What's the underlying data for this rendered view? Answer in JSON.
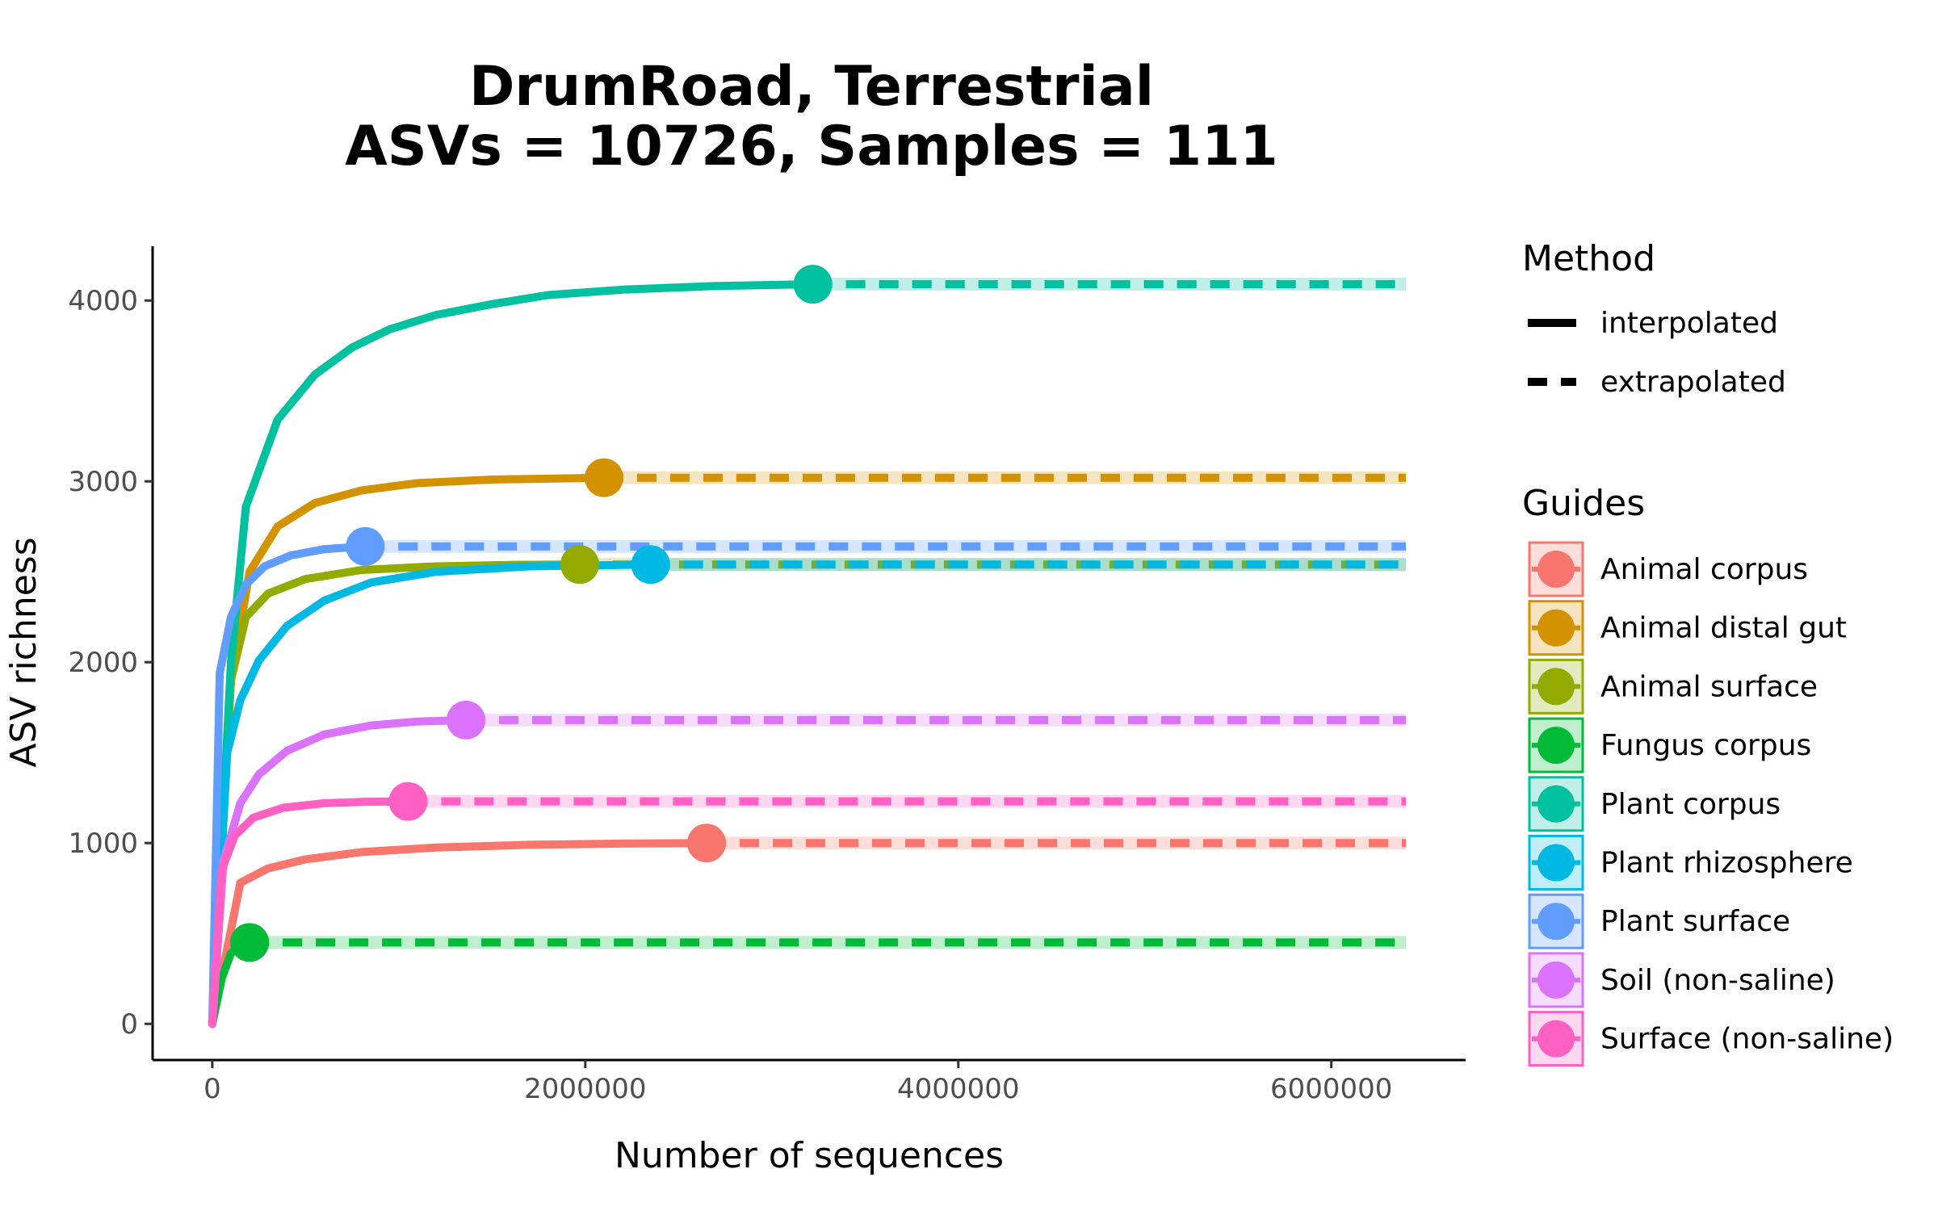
{
  "chart_data": {
    "type": "line",
    "title_line1": "DrumRoad, Terrestrial",
    "title_line2": "ASVs = 10726, Samples = 111",
    "xlabel": "Number of sequences",
    "ylabel": "ASV richness",
    "xlim": [
      -320000,
      6720000
    ],
    "ylim": [
      -200,
      4300
    ],
    "x_extrapolate_end": 6400000,
    "x_ticks": [
      0,
      2000000,
      4000000,
      6000000
    ],
    "x_tick_labels": [
      "0",
      "2000000",
      "4000000",
      "6000000"
    ],
    "y_ticks": [
      0,
      1000,
      2000,
      3000,
      4000
    ],
    "y_tick_labels": [
      "0",
      "1000",
      "2000",
      "3000",
      "4000"
    ],
    "grid": false,
    "legend_placement": "right",
    "method_legend": {
      "title": "Method",
      "items": [
        {
          "label": "interpolated",
          "style": "solid"
        },
        {
          "label": "extrapolated",
          "style": "dashed"
        }
      ]
    },
    "guides_legend_title": "Guides",
    "series": [
      {
        "name": "Animal corpus",
        "color": "#F8766D",
        "observed_x": 2650000,
        "observed_y": 1000,
        "points": [
          [
            0,
            0
          ],
          [
            150000,
            780
          ],
          [
            300000,
            860
          ],
          [
            500000,
            910
          ],
          [
            800000,
            950
          ],
          [
            1200000,
            975
          ],
          [
            1700000,
            990
          ],
          [
            2200000,
            997
          ],
          [
            2650000,
            1000
          ]
        ]
      },
      {
        "name": "Animal distal gut",
        "color": "#D39200",
        "observed_x": 2100000,
        "observed_y": 3020,
        "points": [
          [
            0,
            0
          ],
          [
            100000,
            1900
          ],
          [
            200000,
            2500
          ],
          [
            350000,
            2750
          ],
          [
            550000,
            2880
          ],
          [
            800000,
            2950
          ],
          [
            1100000,
            2990
          ],
          [
            1500000,
            3010
          ],
          [
            2100000,
            3020
          ]
        ]
      },
      {
        "name": "Animal surface",
        "color": "#93AA00",
        "observed_x": 1970000,
        "observed_y": 2540,
        "points": [
          [
            0,
            0
          ],
          [
            100000,
            1900
          ],
          [
            180000,
            2250
          ],
          [
            300000,
            2380
          ],
          [
            500000,
            2460
          ],
          [
            800000,
            2510
          ],
          [
            1200000,
            2530
          ],
          [
            1600000,
            2538
          ],
          [
            1970000,
            2540
          ]
        ]
      },
      {
        "name": "Fungus corpus",
        "color": "#00BA38",
        "observed_x": 200000,
        "observed_y": 450,
        "points": [
          [
            0,
            0
          ],
          [
            50000,
            250
          ],
          [
            100000,
            390
          ],
          [
            150000,
            435
          ],
          [
            200000,
            450
          ]
        ]
      },
      {
        "name": "Plant corpus",
        "color": "#00C19F",
        "observed_x": 3220000,
        "observed_y": 4090,
        "points": [
          [
            0,
            0
          ],
          [
            100000,
            2000
          ],
          [
            180000,
            2860
          ],
          [
            350000,
            3340
          ],
          [
            550000,
            3590
          ],
          [
            750000,
            3740
          ],
          [
            950000,
            3840
          ],
          [
            1200000,
            3920
          ],
          [
            1500000,
            3980
          ],
          [
            1800000,
            4030
          ],
          [
            2200000,
            4060
          ],
          [
            2700000,
            4080
          ],
          [
            3220000,
            4090
          ]
        ]
      },
      {
        "name": "Plant rhizosphere",
        "color": "#00B9E3",
        "observed_x": 2350000,
        "observed_y": 2540,
        "points": [
          [
            0,
            0
          ],
          [
            80000,
            1500
          ],
          [
            150000,
            1790
          ],
          [
            250000,
            2010
          ],
          [
            400000,
            2200
          ],
          [
            600000,
            2340
          ],
          [
            850000,
            2440
          ],
          [
            1200000,
            2500
          ],
          [
            1700000,
            2530
          ],
          [
            2350000,
            2540
          ]
        ]
      },
      {
        "name": "Plant surface",
        "color": "#619CFF",
        "observed_x": 820000,
        "observed_y": 2640,
        "points": [
          [
            0,
            0
          ],
          [
            40000,
            1940
          ],
          [
            100000,
            2250
          ],
          [
            180000,
            2430
          ],
          [
            280000,
            2530
          ],
          [
            420000,
            2590
          ],
          [
            600000,
            2625
          ],
          [
            820000,
            2640
          ]
        ]
      },
      {
        "name": "Soil (non-saline)",
        "color": "#DB72FB",
        "observed_x": 1360000,
        "observed_y": 1680,
        "points": [
          [
            0,
            0
          ],
          [
            60000,
            900
          ],
          [
            150000,
            1220
          ],
          [
            250000,
            1380
          ],
          [
            400000,
            1510
          ],
          [
            600000,
            1600
          ],
          [
            850000,
            1650
          ],
          [
            1100000,
            1672
          ],
          [
            1360000,
            1680
          ]
        ]
      },
      {
        "name": "Surface (non-saline)",
        "color": "#FF61C3",
        "observed_x": 1050000,
        "observed_y": 1230,
        "points": [
          [
            0,
            0
          ],
          [
            50000,
            850
          ],
          [
            120000,
            1040
          ],
          [
            220000,
            1140
          ],
          [
            380000,
            1195
          ],
          [
            600000,
            1220
          ],
          [
            820000,
            1228
          ],
          [
            1050000,
            1230
          ]
        ]
      }
    ]
  }
}
